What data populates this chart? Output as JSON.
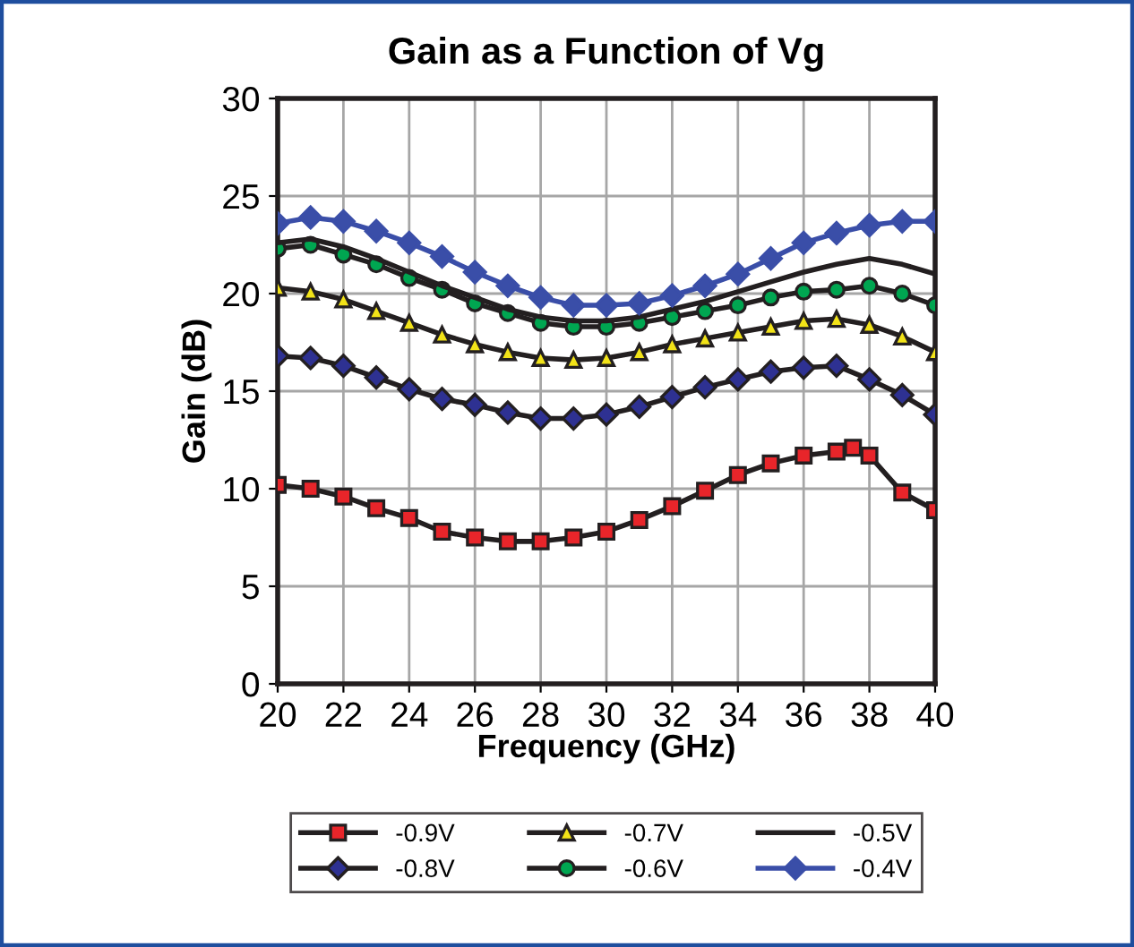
{
  "chart_data": {
    "type": "line",
    "title": "Gain as a Function of Vg",
    "xlabel": "Frequency (GHz)",
    "ylabel": "Gain (dB)",
    "x": [
      20,
      21,
      22,
      23,
      24,
      25,
      26,
      27,
      28,
      29,
      30,
      31,
      32,
      33,
      34,
      35,
      36,
      37,
      38,
      39,
      40
    ],
    "xlim": [
      20,
      40
    ],
    "xticks": [
      20,
      22,
      24,
      26,
      28,
      30,
      32,
      34,
      36,
      38,
      40
    ],
    "ylim": [
      0,
      30
    ],
    "yticks": [
      0,
      5,
      10,
      15,
      20,
      25,
      30
    ],
    "grid": true,
    "legend": "bottom",
    "series": [
      {
        "name": "-0.9V",
        "color": "#e8252a",
        "marker": "square",
        "x": [
          20,
          21,
          22,
          23,
          24,
          25,
          26,
          27,
          28,
          29,
          30,
          31,
          32,
          33,
          34,
          35,
          36,
          37,
          37.5,
          38,
          39,
          40
        ],
        "values": [
          10.2,
          10.0,
          9.6,
          9.0,
          8.5,
          7.8,
          7.5,
          7.3,
          7.3,
          7.5,
          7.8,
          8.4,
          9.1,
          9.9,
          10.7,
          11.3,
          11.7,
          11.9,
          12.1,
          11.7,
          9.8,
          8.9
        ]
      },
      {
        "name": "-0.8V",
        "color": "#2e3192",
        "marker": "diamond",
        "values": [
          16.8,
          16.7,
          16.3,
          15.7,
          15.1,
          14.6,
          14.3,
          13.9,
          13.6,
          13.6,
          13.8,
          14.2,
          14.7,
          15.2,
          15.6,
          16.0,
          16.2,
          16.3,
          15.6,
          14.8,
          13.8
        ]
      },
      {
        "name": "-0.7V",
        "color": "#f2e318",
        "marker": "triangle",
        "values": [
          20.3,
          20.1,
          19.7,
          19.1,
          18.5,
          17.9,
          17.4,
          17.0,
          16.7,
          16.6,
          16.7,
          17.0,
          17.4,
          17.7,
          18.0,
          18.3,
          18.6,
          18.7,
          18.4,
          17.8,
          17.0
        ]
      },
      {
        "name": "-0.6V",
        "color": "#00a651",
        "marker": "circle",
        "values": [
          22.3,
          22.5,
          22.0,
          21.5,
          20.8,
          20.2,
          19.5,
          19.0,
          18.5,
          18.3,
          18.3,
          18.5,
          18.8,
          19.1,
          19.4,
          19.8,
          20.1,
          20.2,
          20.4,
          20.0,
          19.4
        ]
      },
      {
        "name": "-0.5V",
        "color": "#231f20",
        "marker": "none",
        "values": [
          22.6,
          22.8,
          22.4,
          21.8,
          21.1,
          20.4,
          19.8,
          19.2,
          18.8,
          18.6,
          18.6,
          18.8,
          19.2,
          19.6,
          20.1,
          20.6,
          21.1,
          21.5,
          21.8,
          21.5,
          21.0
        ]
      },
      {
        "name": "-0.4V",
        "color": "#3a4ea8",
        "marker": "diamond",
        "values": [
          23.6,
          23.9,
          23.7,
          23.2,
          22.6,
          21.9,
          21.1,
          20.4,
          19.8,
          19.4,
          19.4,
          19.5,
          19.9,
          20.4,
          21.0,
          21.8,
          22.6,
          23.1,
          23.5,
          23.7,
          23.7
        ]
      }
    ]
  }
}
